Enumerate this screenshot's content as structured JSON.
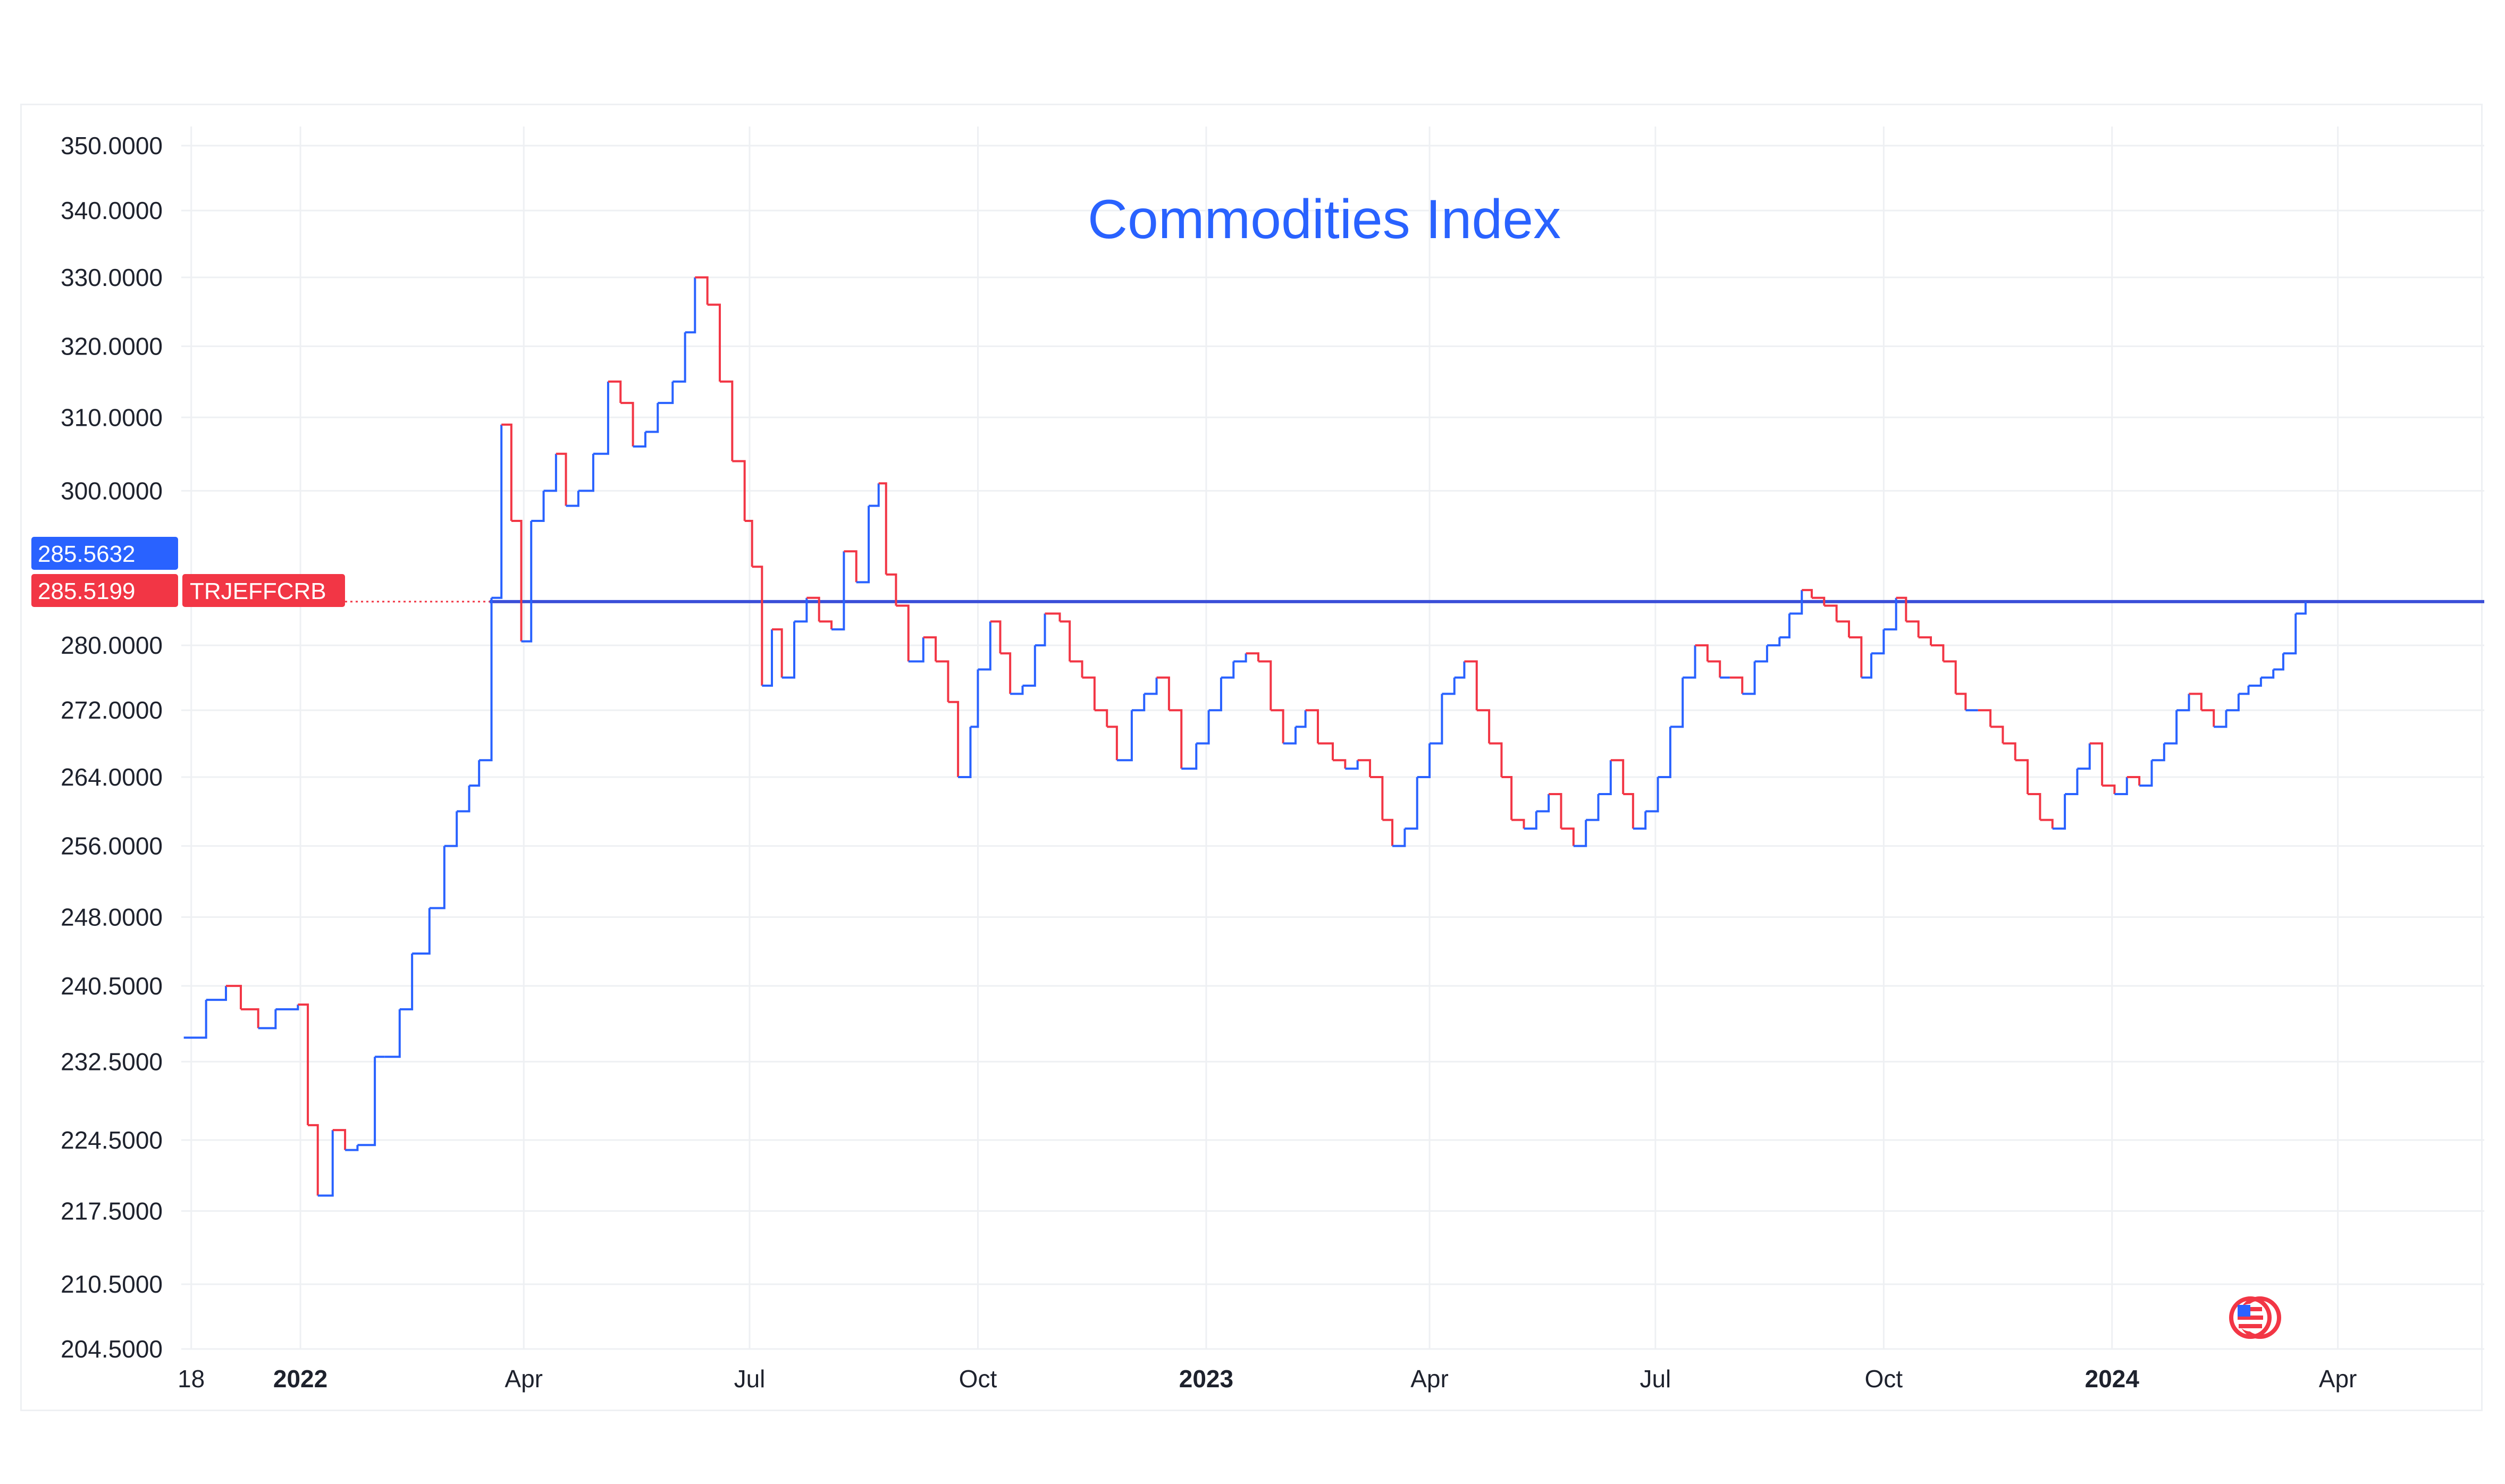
{
  "chart_data": {
    "type": "line",
    "title": "Commodities Index",
    "symbol": "TRJEFFCRB",
    "last_value_label": "285.5632",
    "close_value_label": "285.5199",
    "level_line_value": 285.52,
    "y_scale": "log",
    "ylim": [
      204.5,
      353
    ],
    "y_ticks": [
      "204.5000",
      "210.5000",
      "217.5000",
      "224.5000",
      "232.5000",
      "240.5000",
      "248.0000",
      "256.0000",
      "264.0000",
      "272.0000",
      "280.0000",
      "300.0000",
      "310.0000",
      "320.0000",
      "330.0000",
      "340.0000",
      "350.0000"
    ],
    "x_ticks": [
      {
        "label": "18",
        "date": "2021-11-18",
        "bold": false
      },
      {
        "label": "2022",
        "date": "2022-01-01",
        "bold": true
      },
      {
        "label": "Apr",
        "date": "2022-04-01",
        "bold": false
      },
      {
        "label": "Jul",
        "date": "2022-07-01",
        "bold": false
      },
      {
        "label": "Oct",
        "date": "2022-10-01",
        "bold": false
      },
      {
        "label": "2023",
        "date": "2023-01-01",
        "bold": true
      },
      {
        "label": "Apr",
        "date": "2023-04-01",
        "bold": false
      },
      {
        "label": "Jul",
        "date": "2023-07-01",
        "bold": false
      },
      {
        "label": "Oct",
        "date": "2023-10-01",
        "bold": false
      },
      {
        "label": "2024",
        "date": "2024-01-01",
        "bold": true
      },
      {
        "label": "Apr",
        "date": "2024-04-01",
        "bold": false
      }
    ],
    "xlim": [
      "2021-11-14",
      "2024-05-30"
    ],
    "grid": true,
    "colors": {
      "up": "#2962ff",
      "down": "#f23645",
      "level_line": "#3b4fd8",
      "title": "#2962ff"
    },
    "series": [
      {
        "points": [
          [
            "2021-11-15",
            235
          ],
          [
            "2021-11-24",
            239
          ],
          [
            "2021-12-02",
            240.5
          ],
          [
            "2021-12-08",
            238
          ],
          [
            "2021-12-15",
            236
          ],
          [
            "2021-12-22",
            238
          ],
          [
            "2021-12-31",
            238.5
          ],
          [
            "2022-01-04",
            226
          ],
          [
            "2022-01-08",
            219
          ],
          [
            "2022-01-14",
            225.5
          ],
          [
            "2022-01-19",
            223.5
          ],
          [
            "2022-01-24",
            224
          ],
          [
            "2022-01-31",
            233
          ],
          [
            "2022-02-04",
            233
          ],
          [
            "2022-02-10",
            238
          ],
          [
            "2022-02-15",
            244
          ],
          [
            "2022-02-22",
            249
          ],
          [
            "2022-02-28",
            256
          ],
          [
            "2022-03-05",
            260
          ],
          [
            "2022-03-10",
            263
          ],
          [
            "2022-03-14",
            266
          ],
          [
            "2022-03-19",
            286
          ],
          [
            "2022-03-23",
            309
          ],
          [
            "2022-03-27",
            296
          ],
          [
            "2022-03-31",
            280.5
          ],
          [
            "2022-04-04",
            296
          ],
          [
            "2022-04-09",
            300
          ],
          [
            "2022-04-14",
            305
          ],
          [
            "2022-04-18",
            298
          ],
          [
            "2022-04-23",
            300
          ],
          [
            "2022-04-29",
            305
          ],
          [
            "2022-05-05",
            315
          ],
          [
            "2022-05-10",
            312
          ],
          [
            "2022-05-15",
            306
          ],
          [
            "2022-05-20",
            308
          ],
          [
            "2022-05-25",
            312
          ],
          [
            "2022-05-31",
            315
          ],
          [
            "2022-06-05",
            322
          ],
          [
            "2022-06-09",
            330
          ],
          [
            "2022-06-14",
            326
          ],
          [
            "2022-06-19",
            315
          ],
          [
            "2022-06-24",
            304
          ],
          [
            "2022-06-29",
            296
          ],
          [
            "2022-07-02",
            290
          ],
          [
            "2022-07-06",
            275
          ],
          [
            "2022-07-10",
            282
          ],
          [
            "2022-07-14",
            276
          ],
          [
            "2022-07-19",
            283
          ],
          [
            "2022-07-24",
            286
          ],
          [
            "2022-07-29",
            283
          ],
          [
            "2022-08-03",
            282
          ],
          [
            "2022-08-08",
            292
          ],
          [
            "2022-08-13",
            288
          ],
          [
            "2022-08-18",
            298
          ],
          [
            "2022-08-22",
            301
          ],
          [
            "2022-08-25",
            289
          ],
          [
            "2022-08-29",
            285
          ],
          [
            "2022-09-03",
            278
          ],
          [
            "2022-09-09",
            281
          ],
          [
            "2022-09-14",
            278
          ],
          [
            "2022-09-19",
            273
          ],
          [
            "2022-09-23",
            264
          ],
          [
            "2022-09-28",
            270
          ],
          [
            "2022-10-01",
            277
          ],
          [
            "2022-10-06",
            283
          ],
          [
            "2022-10-10",
            279
          ],
          [
            "2022-10-14",
            274
          ],
          [
            "2022-10-19",
            275
          ],
          [
            "2022-10-24",
            280
          ],
          [
            "2022-10-28",
            284
          ],
          [
            "2022-11-03",
            283
          ],
          [
            "2022-11-07",
            278
          ],
          [
            "2022-11-12",
            276
          ],
          [
            "2022-11-17",
            272
          ],
          [
            "2022-11-22",
            270
          ],
          [
            "2022-11-26",
            266
          ],
          [
            "2022-12-02",
            272
          ],
          [
            "2022-12-07",
            274
          ],
          [
            "2022-12-12",
            276
          ],
          [
            "2022-12-17",
            272
          ],
          [
            "2022-12-22",
            265
          ],
          [
            "2022-12-28",
            268
          ],
          [
            "2023-01-02",
            272
          ],
          [
            "2023-01-07",
            276
          ],
          [
            "2023-01-12",
            278
          ],
          [
            "2023-01-17",
            279
          ],
          [
            "2023-01-22",
            278
          ],
          [
            "2023-01-27",
            272
          ],
          [
            "2023-02-01",
            268
          ],
          [
            "2023-02-06",
            270
          ],
          [
            "2023-02-10",
            272
          ],
          [
            "2023-02-15",
            268
          ],
          [
            "2023-02-21",
            266
          ],
          [
            "2023-02-26",
            265
          ],
          [
            "2023-03-03",
            266
          ],
          [
            "2023-03-08",
            264
          ],
          [
            "2023-03-13",
            259
          ],
          [
            "2023-03-17",
            256
          ],
          [
            "2023-03-22",
            258
          ],
          [
            "2023-03-27",
            264
          ],
          [
            "2023-04-01",
            268
          ],
          [
            "2023-04-06",
            274
          ],
          [
            "2023-04-11",
            276
          ],
          [
            "2023-04-15",
            278
          ],
          [
            "2023-04-20",
            272
          ],
          [
            "2023-04-25",
            268
          ],
          [
            "2023-04-30",
            264
          ],
          [
            "2023-05-04",
            259
          ],
          [
            "2023-05-09",
            258
          ],
          [
            "2023-05-14",
            260
          ],
          [
            "2023-05-19",
            262
          ],
          [
            "2023-05-24",
            258
          ],
          [
            "2023-05-29",
            256
          ],
          [
            "2023-06-03",
            259
          ],
          [
            "2023-06-08",
            262
          ],
          [
            "2023-06-13",
            266
          ],
          [
            "2023-06-18",
            262
          ],
          [
            "2023-06-22",
            258
          ],
          [
            "2023-06-27",
            260
          ],
          [
            "2023-07-02",
            264
          ],
          [
            "2023-07-07",
            270
          ],
          [
            "2023-07-12",
            276
          ],
          [
            "2023-07-17",
            280
          ],
          [
            "2023-07-22",
            278
          ],
          [
            "2023-07-27",
            276
          ],
          [
            "2023-07-31",
            276
          ],
          [
            "2023-08-05",
            274
          ],
          [
            "2023-08-10",
            278
          ],
          [
            "2023-08-15",
            280
          ],
          [
            "2023-08-20",
            281
          ],
          [
            "2023-08-24",
            284
          ],
          [
            "2023-08-29",
            287
          ],
          [
            "2023-09-02",
            286
          ],
          [
            "2023-09-07",
            285
          ],
          [
            "2023-09-12",
            283
          ],
          [
            "2023-09-17",
            281
          ],
          [
            "2023-09-22",
            276
          ],
          [
            "2023-09-26",
            279
          ],
          [
            "2023-10-01",
            282
          ],
          [
            "2023-10-06",
            286
          ],
          [
            "2023-10-10",
            283
          ],
          [
            "2023-10-15",
            281
          ],
          [
            "2023-10-20",
            280
          ],
          [
            "2023-10-25",
            278
          ],
          [
            "2023-10-30",
            274
          ],
          [
            "2023-11-03",
            272
          ],
          [
            "2023-11-08",
            272
          ],
          [
            "2023-11-13",
            270
          ],
          [
            "2023-11-18",
            268
          ],
          [
            "2023-11-23",
            266
          ],
          [
            "2023-11-28",
            262
          ],
          [
            "2023-12-03",
            259
          ],
          [
            "2023-12-08",
            258
          ],
          [
            "2023-12-13",
            262
          ],
          [
            "2023-12-18",
            265
          ],
          [
            "2023-12-23",
            268
          ],
          [
            "2023-12-28",
            263
          ],
          [
            "2024-01-02",
            262
          ],
          [
            "2024-01-07",
            264
          ],
          [
            "2024-01-12",
            263
          ],
          [
            "2024-01-17",
            266
          ],
          [
            "2024-01-22",
            268
          ],
          [
            "2024-01-27",
            272
          ],
          [
            "2024-02-01",
            274
          ],
          [
            "2024-02-06",
            272
          ],
          [
            "2024-02-11",
            270
          ],
          [
            "2024-02-16",
            272
          ],
          [
            "2024-02-21",
            274
          ],
          [
            "2024-02-25",
            275
          ],
          [
            "2024-03-01",
            276
          ],
          [
            "2024-03-06",
            277
          ],
          [
            "2024-03-10",
            279
          ],
          [
            "2024-03-15",
            284
          ],
          [
            "2024-03-19",
            285.5
          ]
        ]
      }
    ]
  },
  "logo": {
    "icon": "us-flag-badge-icon"
  }
}
